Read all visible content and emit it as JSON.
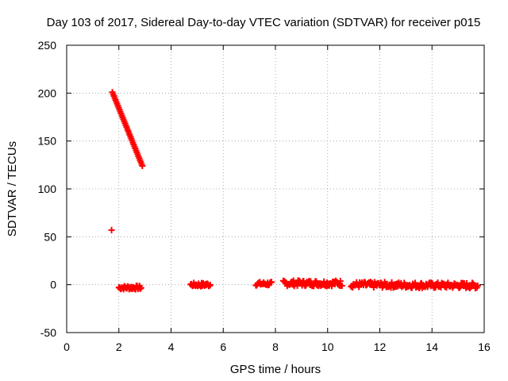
{
  "chart_data": {
    "type": "scatter",
    "title": "Day 103 of 2017, Sidereal Day-to-day VTEC variation (SDTVAR) for receiver p015",
    "xlabel": "GPS time / hours",
    "ylabel": "SDTVAR / TECUs",
    "xlim": [
      0,
      16
    ],
    "ylim": [
      -50,
      250
    ],
    "xticks": [
      0,
      2,
      4,
      6,
      8,
      10,
      12,
      14,
      16
    ],
    "yticks": [
      -50,
      0,
      50,
      100,
      150,
      200,
      250
    ],
    "grid": true,
    "marker": "+",
    "color": "#ff0000",
    "series": [
      {
        "name": "SDTVAR",
        "segments": [
          {
            "x0": 1.75,
            "x1": 2.9,
            "y0": 201,
            "y1": 124,
            "step": 0.03
          },
          {
            "x0": 2.0,
            "x1": 2.85,
            "y0": -3,
            "y1": -3,
            "step": 0.03,
            "jitter": 2
          },
          {
            "x0": 4.75,
            "x1": 5.5,
            "y0": 0,
            "y1": 0,
            "step": 0.03,
            "jitter": 2
          },
          {
            "x0": 7.25,
            "x1": 7.85,
            "y0": 1,
            "y1": 1,
            "step": 0.03,
            "jitter": 2
          },
          {
            "x0": 8.3,
            "x1": 10.55,
            "y0": 1.5,
            "y1": 1.5,
            "step": 0.03,
            "jitter": 3
          },
          {
            "x0": 10.9,
            "x1": 15.75,
            "y0": 0,
            "y1": -1,
            "step": 0.03,
            "jitter": 3
          }
        ],
        "points": [
          {
            "x": 1.72,
            "y": 57
          }
        ]
      }
    ]
  }
}
